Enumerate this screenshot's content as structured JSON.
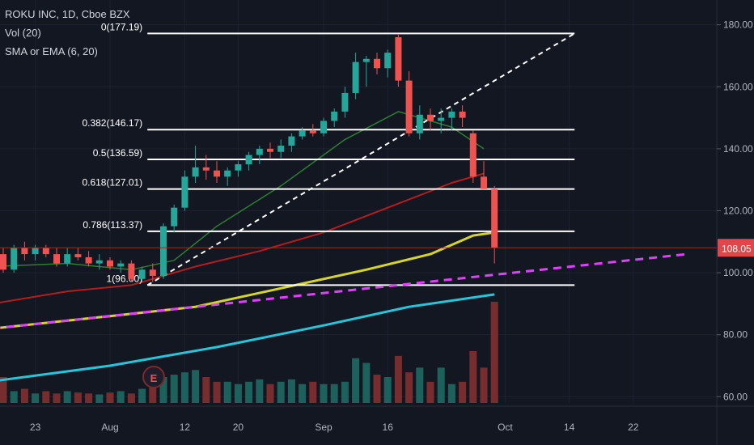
{
  "legend": {
    "title": "ROKU INC, 1D, Cboe BZX",
    "vol": "Vol (20)",
    "ma": "SMA or EMA (6, 20)"
  },
  "earnings_badge": "E",
  "price_tag": "108.05",
  "colors": {
    "background": "#131722",
    "up": "#26a69a",
    "down": "#ef5350",
    "fib_line": "#ffffff",
    "trend_dashed": "#e040fb",
    "sma_yellow": "#d4d42a",
    "ema_red": "#b71c1c",
    "sma_cyan": "#26c6da",
    "band_green": "#2e7d32"
  },
  "chart_data": {
    "type": "candlestick",
    "ylim": [
      58,
      188
    ],
    "y_ticks": [
      "60.00",
      "80.00",
      "100.00",
      "120.00",
      "140.00",
      "160.00",
      "180.00"
    ],
    "x_ticks": [
      {
        "label": "23",
        "index": 3
      },
      {
        "label": "Aug",
        "index": 10
      },
      {
        "label": "12",
        "index": 17
      },
      {
        "label": "20",
        "index": 22
      },
      {
        "label": "Sep",
        "index": 30
      },
      {
        "label": "16",
        "index": 36
      },
      {
        "label": "Oct",
        "index": 47
      },
      {
        "label": "14",
        "index": 53
      },
      {
        "label": "22",
        "index": 59
      }
    ],
    "candles": [
      [
        106,
        108,
        100,
        101
      ],
      [
        101,
        109,
        100,
        108
      ],
      [
        108,
        110,
        104,
        106
      ],
      [
        106,
        109,
        104,
        108
      ],
      [
        108,
        109,
        105,
        106
      ],
      [
        106,
        108,
        102,
        103
      ],
      [
        103,
        108,
        102,
        106
      ],
      [
        106,
        108,
        104,
        105
      ],
      [
        105,
        107,
        102,
        103
      ],
      [
        103,
        106,
        101,
        104
      ],
      [
        104,
        105,
        101,
        102
      ],
      [
        102,
        104,
        100,
        103
      ],
      [
        103,
        104,
        97,
        98
      ],
      [
        98,
        102,
        97,
        101
      ],
      [
        101,
        103,
        97,
        99
      ],
      [
        99,
        116,
        98,
        115
      ],
      [
        115,
        122,
        113,
        121
      ],
      [
        121,
        133,
        120,
        131
      ],
      [
        131,
        141,
        129,
        134
      ],
      [
        134,
        138,
        130,
        133
      ],
      [
        133,
        136,
        129,
        131
      ],
      [
        131,
        134,
        128,
        133
      ],
      [
        133,
        136,
        131,
        135
      ],
      [
        135,
        139,
        133,
        138
      ],
      [
        138,
        141,
        135,
        140
      ],
      [
        140,
        142,
        137,
        139
      ],
      [
        139,
        143,
        137,
        141
      ],
      [
        141,
        145,
        139,
        144
      ],
      [
        144,
        147,
        143,
        146
      ],
      [
        146,
        148,
        144,
        145
      ],
      [
        145,
        150,
        144,
        149
      ],
      [
        149,
        153,
        147,
        152
      ],
      [
        152,
        160,
        150,
        158
      ],
      [
        158,
        171,
        156,
        168
      ],
      [
        168,
        170,
        160,
        169
      ],
      [
        169,
        171,
        164,
        166
      ],
      [
        166,
        172,
        163,
        171
      ],
      [
        176,
        177,
        160,
        162
      ],
      [
        162,
        165,
        144,
        145
      ],
      [
        145,
        154,
        143,
        151
      ],
      [
        151,
        153,
        146,
        149
      ],
      [
        149,
        153,
        145,
        150
      ],
      [
        150,
        153,
        146,
        152
      ],
      [
        152,
        154,
        147,
        150
      ],
      [
        145,
        146,
        129,
        131
      ],
      [
        131,
        136,
        127,
        127
      ],
      [
        127,
        128,
        103,
        108
      ]
    ],
    "volume": [
      55,
      25,
      30,
      20,
      25,
      20,
      25,
      22,
      20,
      18,
      22,
      25,
      20,
      30,
      35,
      55,
      60,
      65,
      70,
      55,
      45,
      45,
      40,
      45,
      50,
      40,
      45,
      50,
      40,
      45,
      40,
      40,
      45,
      95,
      85,
      60,
      55,
      100,
      65,
      75,
      45,
      75,
      40,
      45,
      110,
      75,
      215
    ],
    "volume_max": 220,
    "fib_levels": [
      {
        "label": "0(177.19)",
        "value": 177.19
      },
      {
        "label": "0.382(146.17)",
        "value": 146.17
      },
      {
        "label": "0.5(136.59)",
        "value": 136.59
      },
      {
        "label": "0.618(127.01)",
        "value": 127.01
      },
      {
        "label": "0.786(113.37)",
        "value": 113.37
      },
      {
        "label": "1(96.00)",
        "value": 96.0
      }
    ],
    "fib_x_range": [
      13.5,
      53.5
    ],
    "trend_line": {
      "from": [
        13.5,
        96.0
      ],
      "to": [
        53.5,
        177.19
      ]
    },
    "dashed_support": {
      "from": [
        -1,
        82
      ],
      "to": [
        64,
        106
      ]
    },
    "current_price": 108.05,
    "ma_lines": [
      {
        "color_key": "sma_cyan",
        "width": 3,
        "points": [
          [
            -1,
            65
          ],
          [
            10,
            70
          ],
          [
            20,
            76
          ],
          [
            30,
            83
          ],
          [
            38,
            89
          ],
          [
            46,
            93
          ]
        ]
      },
      {
        "color_key": "sma_yellow",
        "width": 3,
        "points": [
          [
            -1,
            82
          ],
          [
            10,
            86
          ],
          [
            18,
            89
          ],
          [
            26,
            95
          ],
          [
            34,
            101
          ],
          [
            40,
            106
          ],
          [
            44,
            112
          ],
          [
            46,
            113
          ]
        ]
      },
      {
        "color_key": "ema_red",
        "width": 2,
        "points": [
          [
            -1,
            90
          ],
          [
            6,
            94
          ],
          [
            12,
            96
          ],
          [
            18,
            102
          ],
          [
            24,
            107
          ],
          [
            30,
            113
          ],
          [
            36,
            121
          ],
          [
            42,
            129
          ],
          [
            45,
            132
          ]
        ]
      },
      {
        "color_key": "band_green",
        "width": 1.5,
        "points": [
          [
            -1,
            102
          ],
          [
            6,
            103
          ],
          [
            12,
            101
          ],
          [
            16,
            104
          ],
          [
            20,
            115
          ],
          [
            26,
            128
          ],
          [
            32,
            143
          ],
          [
            37,
            152
          ],
          [
            42,
            147
          ],
          [
            45,
            140
          ]
        ]
      }
    ]
  }
}
